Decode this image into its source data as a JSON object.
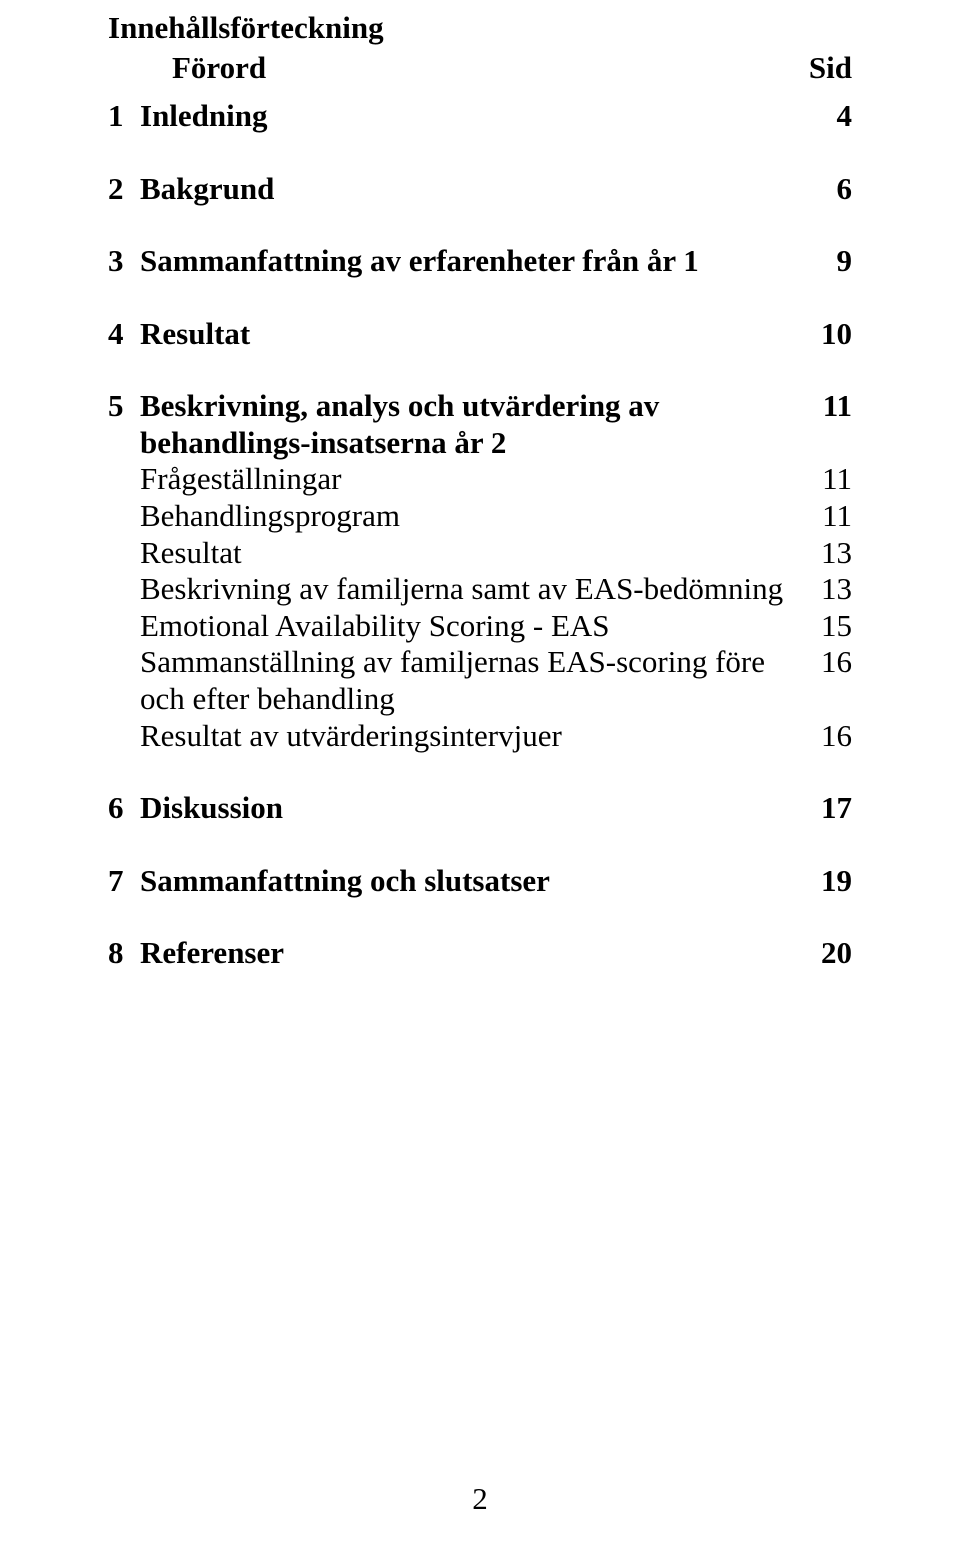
{
  "doc_title": "Innehållsförteckning",
  "forord": "Förord",
  "sid": "Sid",
  "page_number": "2",
  "colors": {
    "text": "#000000",
    "background": "#ffffff"
  },
  "typography": {
    "family": "Times New Roman",
    "title_size_pt": 24,
    "entry_size_pt": 24,
    "heading_weight": "bold",
    "sub_weight": "normal"
  },
  "toc": [
    {
      "num": "1",
      "title": "Inledning",
      "page": "4",
      "subs": []
    },
    {
      "num": "2",
      "title": "Bakgrund",
      "page": "6",
      "subs": []
    },
    {
      "num": "3",
      "title": "Sammanfattning av erfarenheter från år 1",
      "page": "9",
      "subs": []
    },
    {
      "num": "4",
      "title": "Resultat",
      "page": "10",
      "subs": []
    },
    {
      "num": "5",
      "title": "Beskrivning, analys och utvärdering av behandlings-insatserna år 2",
      "page": "11",
      "subs": [
        {
          "title": "Frågeställningar",
          "page": "11"
        },
        {
          "title": "Behandlingsprogram",
          "page": "11"
        },
        {
          "title": "Resultat",
          "page": "13"
        },
        {
          "title": "Beskrivning av familjerna samt av EAS-bedömning",
          "page": "13"
        },
        {
          "title": "Emotional Availability Scoring - EAS",
          "page": "15"
        },
        {
          "title": "Sammanställning av familjernas EAS-scoring före och efter behandling",
          "page": "16"
        },
        {
          "title": "Resultat av utvärderingsintervjuer",
          "page": "16"
        }
      ]
    },
    {
      "num": "6",
      "title": "Diskussion",
      "page": "17",
      "subs": []
    },
    {
      "num": "7",
      "title": "Sammanfattning och slutsatser",
      "page": "19",
      "subs": []
    },
    {
      "num": "8",
      "title": "Referenser",
      "page": "20",
      "subs": []
    }
  ]
}
